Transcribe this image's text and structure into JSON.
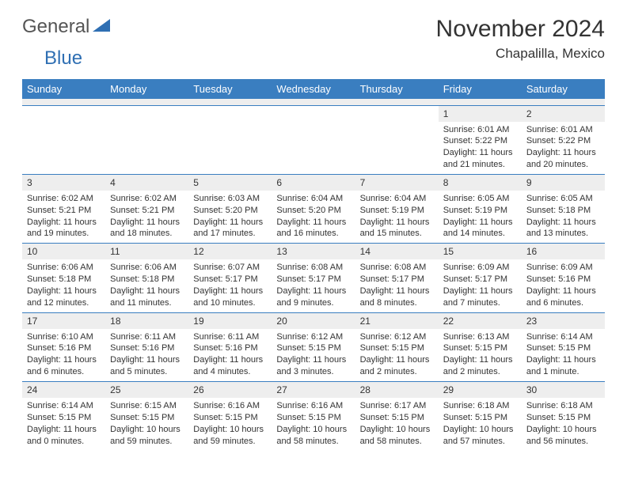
{
  "logo": {
    "text1": "General",
    "text2": "Blue"
  },
  "title": "November 2024",
  "location": "Chapalilla, Mexico",
  "colors": {
    "header_blue": "#3a7ec0",
    "row_divider": "#3a7ec0",
    "day_num_bg": "#eeeeee",
    "text": "#333333",
    "logo_gray": "#555555",
    "logo_blue": "#2f6fb3"
  },
  "day_headers": [
    "Sunday",
    "Monday",
    "Tuesday",
    "Wednesday",
    "Thursday",
    "Friday",
    "Saturday"
  ],
  "weeks": [
    [
      null,
      null,
      null,
      null,
      null,
      {
        "n": "1",
        "sunrise": "Sunrise: 6:01 AM",
        "sunset": "Sunset: 5:22 PM",
        "daylight": "Daylight: 11 hours and 21 minutes."
      },
      {
        "n": "2",
        "sunrise": "Sunrise: 6:01 AM",
        "sunset": "Sunset: 5:22 PM",
        "daylight": "Daylight: 11 hours and 20 minutes."
      }
    ],
    [
      {
        "n": "3",
        "sunrise": "Sunrise: 6:02 AM",
        "sunset": "Sunset: 5:21 PM",
        "daylight": "Daylight: 11 hours and 19 minutes."
      },
      {
        "n": "4",
        "sunrise": "Sunrise: 6:02 AM",
        "sunset": "Sunset: 5:21 PM",
        "daylight": "Daylight: 11 hours and 18 minutes."
      },
      {
        "n": "5",
        "sunrise": "Sunrise: 6:03 AM",
        "sunset": "Sunset: 5:20 PM",
        "daylight": "Daylight: 11 hours and 17 minutes."
      },
      {
        "n": "6",
        "sunrise": "Sunrise: 6:04 AM",
        "sunset": "Sunset: 5:20 PM",
        "daylight": "Daylight: 11 hours and 16 minutes."
      },
      {
        "n": "7",
        "sunrise": "Sunrise: 6:04 AM",
        "sunset": "Sunset: 5:19 PM",
        "daylight": "Daylight: 11 hours and 15 minutes."
      },
      {
        "n": "8",
        "sunrise": "Sunrise: 6:05 AM",
        "sunset": "Sunset: 5:19 PM",
        "daylight": "Daylight: 11 hours and 14 minutes."
      },
      {
        "n": "9",
        "sunrise": "Sunrise: 6:05 AM",
        "sunset": "Sunset: 5:18 PM",
        "daylight": "Daylight: 11 hours and 13 minutes."
      }
    ],
    [
      {
        "n": "10",
        "sunrise": "Sunrise: 6:06 AM",
        "sunset": "Sunset: 5:18 PM",
        "daylight": "Daylight: 11 hours and 12 minutes."
      },
      {
        "n": "11",
        "sunrise": "Sunrise: 6:06 AM",
        "sunset": "Sunset: 5:18 PM",
        "daylight": "Daylight: 11 hours and 11 minutes."
      },
      {
        "n": "12",
        "sunrise": "Sunrise: 6:07 AM",
        "sunset": "Sunset: 5:17 PM",
        "daylight": "Daylight: 11 hours and 10 minutes."
      },
      {
        "n": "13",
        "sunrise": "Sunrise: 6:08 AM",
        "sunset": "Sunset: 5:17 PM",
        "daylight": "Daylight: 11 hours and 9 minutes."
      },
      {
        "n": "14",
        "sunrise": "Sunrise: 6:08 AM",
        "sunset": "Sunset: 5:17 PM",
        "daylight": "Daylight: 11 hours and 8 minutes."
      },
      {
        "n": "15",
        "sunrise": "Sunrise: 6:09 AM",
        "sunset": "Sunset: 5:17 PM",
        "daylight": "Daylight: 11 hours and 7 minutes."
      },
      {
        "n": "16",
        "sunrise": "Sunrise: 6:09 AM",
        "sunset": "Sunset: 5:16 PM",
        "daylight": "Daylight: 11 hours and 6 minutes."
      }
    ],
    [
      {
        "n": "17",
        "sunrise": "Sunrise: 6:10 AM",
        "sunset": "Sunset: 5:16 PM",
        "daylight": "Daylight: 11 hours and 6 minutes."
      },
      {
        "n": "18",
        "sunrise": "Sunrise: 6:11 AM",
        "sunset": "Sunset: 5:16 PM",
        "daylight": "Daylight: 11 hours and 5 minutes."
      },
      {
        "n": "19",
        "sunrise": "Sunrise: 6:11 AM",
        "sunset": "Sunset: 5:16 PM",
        "daylight": "Daylight: 11 hours and 4 minutes."
      },
      {
        "n": "20",
        "sunrise": "Sunrise: 6:12 AM",
        "sunset": "Sunset: 5:15 PM",
        "daylight": "Daylight: 11 hours and 3 minutes."
      },
      {
        "n": "21",
        "sunrise": "Sunrise: 6:12 AM",
        "sunset": "Sunset: 5:15 PM",
        "daylight": "Daylight: 11 hours and 2 minutes."
      },
      {
        "n": "22",
        "sunrise": "Sunrise: 6:13 AM",
        "sunset": "Sunset: 5:15 PM",
        "daylight": "Daylight: 11 hours and 2 minutes."
      },
      {
        "n": "23",
        "sunrise": "Sunrise: 6:14 AM",
        "sunset": "Sunset: 5:15 PM",
        "daylight": "Daylight: 11 hours and 1 minute."
      }
    ],
    [
      {
        "n": "24",
        "sunrise": "Sunrise: 6:14 AM",
        "sunset": "Sunset: 5:15 PM",
        "daylight": "Daylight: 11 hours and 0 minutes."
      },
      {
        "n": "25",
        "sunrise": "Sunrise: 6:15 AM",
        "sunset": "Sunset: 5:15 PM",
        "daylight": "Daylight: 10 hours and 59 minutes."
      },
      {
        "n": "26",
        "sunrise": "Sunrise: 6:16 AM",
        "sunset": "Sunset: 5:15 PM",
        "daylight": "Daylight: 10 hours and 59 minutes."
      },
      {
        "n": "27",
        "sunrise": "Sunrise: 6:16 AM",
        "sunset": "Sunset: 5:15 PM",
        "daylight": "Daylight: 10 hours and 58 minutes."
      },
      {
        "n": "28",
        "sunrise": "Sunrise: 6:17 AM",
        "sunset": "Sunset: 5:15 PM",
        "daylight": "Daylight: 10 hours and 58 minutes."
      },
      {
        "n": "29",
        "sunrise": "Sunrise: 6:18 AM",
        "sunset": "Sunset: 5:15 PM",
        "daylight": "Daylight: 10 hours and 57 minutes."
      },
      {
        "n": "30",
        "sunrise": "Sunrise: 6:18 AM",
        "sunset": "Sunset: 5:15 PM",
        "daylight": "Daylight: 10 hours and 56 minutes."
      }
    ]
  ]
}
